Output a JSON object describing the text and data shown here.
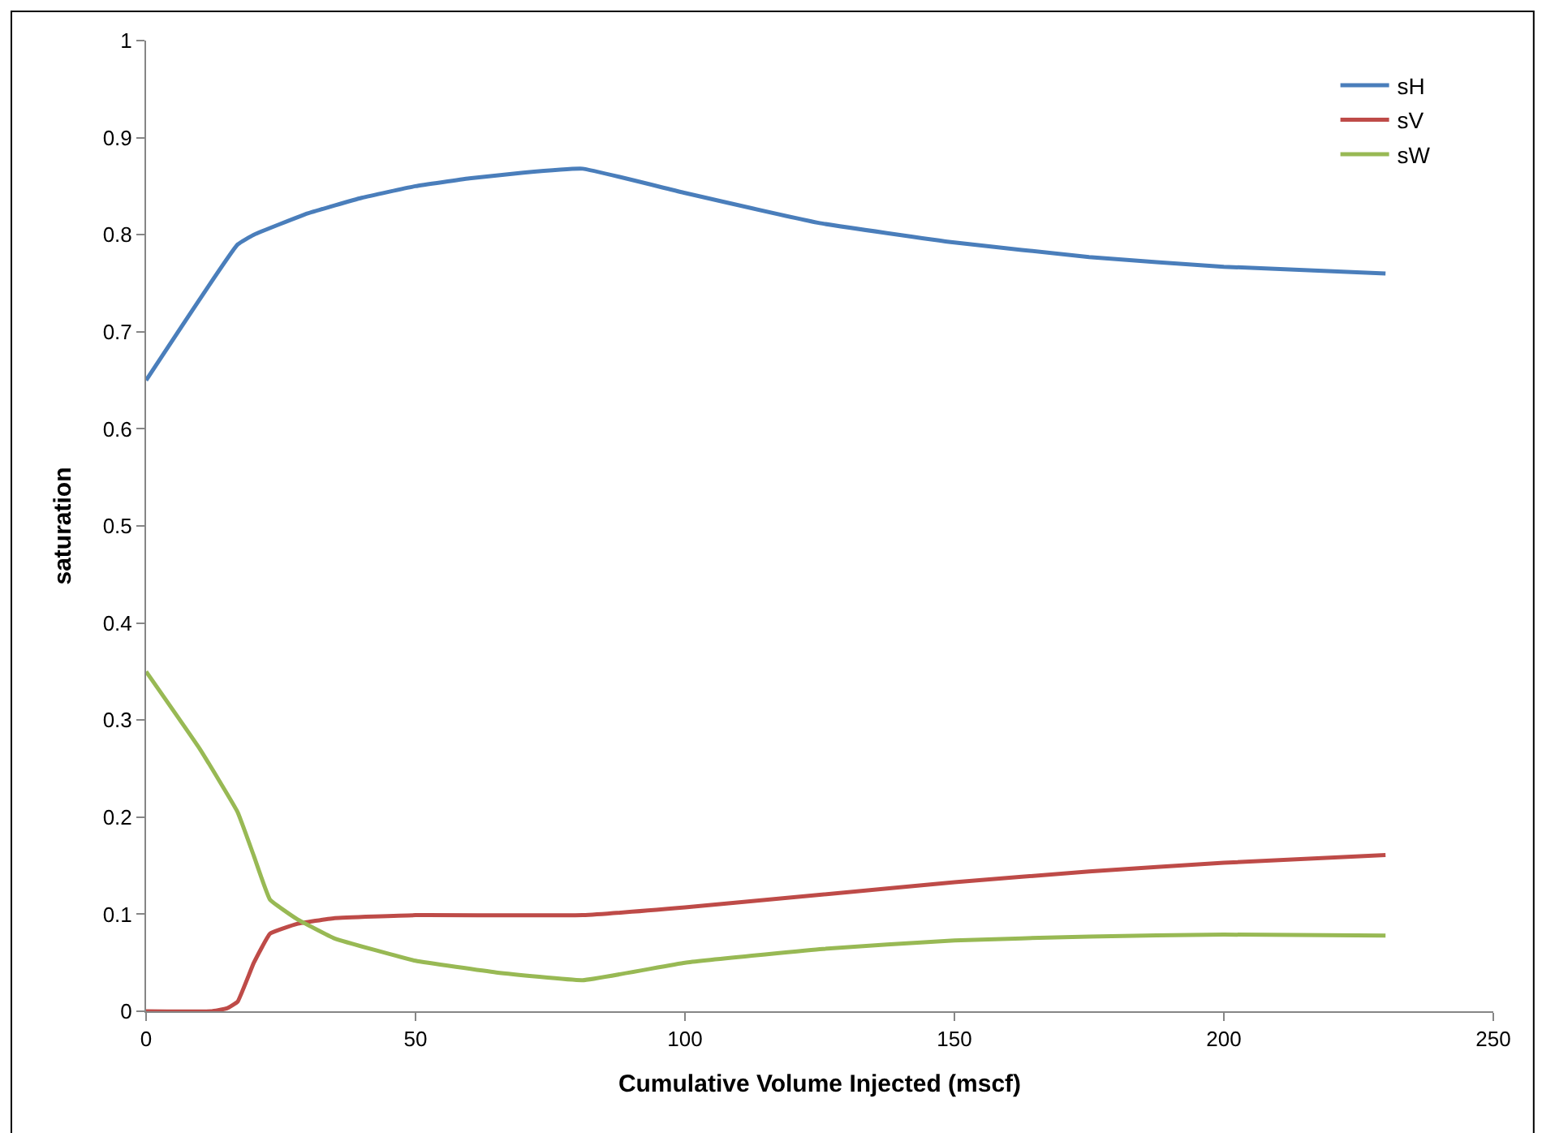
{
  "chart_data": {
    "type": "line",
    "xlabel": "Cumulative Volume Injected (mscf)",
    "ylabel": "saturation",
    "xlim": [
      0,
      250
    ],
    "xticks": [
      0,
      50,
      100,
      150,
      200,
      250
    ],
    "ylim": [
      0,
      1
    ],
    "yticks": [
      0,
      0.1,
      0.2,
      0.3,
      0.4,
      0.5,
      0.6,
      0.7,
      0.8,
      0.9,
      1
    ],
    "legend": "top right",
    "marker": "none",
    "line_style": "solid",
    "series": [
      {
        "name": "sH",
        "color": "#4a7ebb",
        "x": [
          0,
          17,
          20,
          30,
          40,
          50,
          60,
          70,
          81,
          100,
          125,
          150,
          175,
          200,
          230
        ],
        "values": [
          0.65,
          0.79,
          0.8,
          0.822,
          0.838,
          0.85,
          0.858,
          0.864,
          0.868,
          0.843,
          0.812,
          0.792,
          0.777,
          0.767,
          0.76
        ]
      },
      {
        "name": "sV",
        "color": "#be4b48",
        "x": [
          0,
          12,
          15,
          17,
          20,
          23,
          28,
          35,
          50,
          81,
          100,
          125,
          150,
          175,
          200,
          230
        ],
        "values": [
          0,
          0,
          0.003,
          0.01,
          0.05,
          0.08,
          0.09,
          0.096,
          0.099,
          0.099,
          0.107,
          0.12,
          0.133,
          0.144,
          0.153,
          0.161
        ]
      },
      {
        "name": "sW",
        "color": "#98b954",
        "x": [
          0,
          10,
          17,
          20,
          23,
          28,
          35,
          50,
          65,
          81,
          100,
          125,
          150,
          175,
          200,
          230
        ],
        "values": [
          0.35,
          0.27,
          0.205,
          0.16,
          0.115,
          0.095,
          0.075,
          0.052,
          0.04,
          0.032,
          0.05,
          0.064,
          0.073,
          0.077,
          0.079,
          0.078
        ]
      }
    ]
  }
}
